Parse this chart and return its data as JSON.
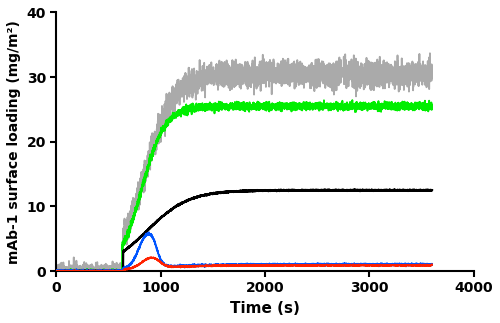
{
  "title": "",
  "xlabel": "Time (s)",
  "ylabel": "mAb-1 surface loading (mg/m²)",
  "xlim": [
    0,
    4000
  ],
  "ylim": [
    0,
    40
  ],
  "yticks": [
    0,
    10,
    20,
    30,
    40
  ],
  "xticks": [
    0,
    1000,
    2000,
    3000,
    4000
  ],
  "line_colors": {
    "gray": "#aaaaaa",
    "green": "#00ee00",
    "black": "#000000",
    "blue": "#0055ff",
    "red": "#ff2200"
  },
  "noise_scale": {
    "gray_early": 0.6,
    "gray_main": 1.0,
    "green_early": 0.12,
    "green_main": 0.3,
    "black": 0.04,
    "blue": 0.08,
    "red": 0.04
  },
  "figsize": [
    5.0,
    3.23
  ],
  "dpi": 100
}
